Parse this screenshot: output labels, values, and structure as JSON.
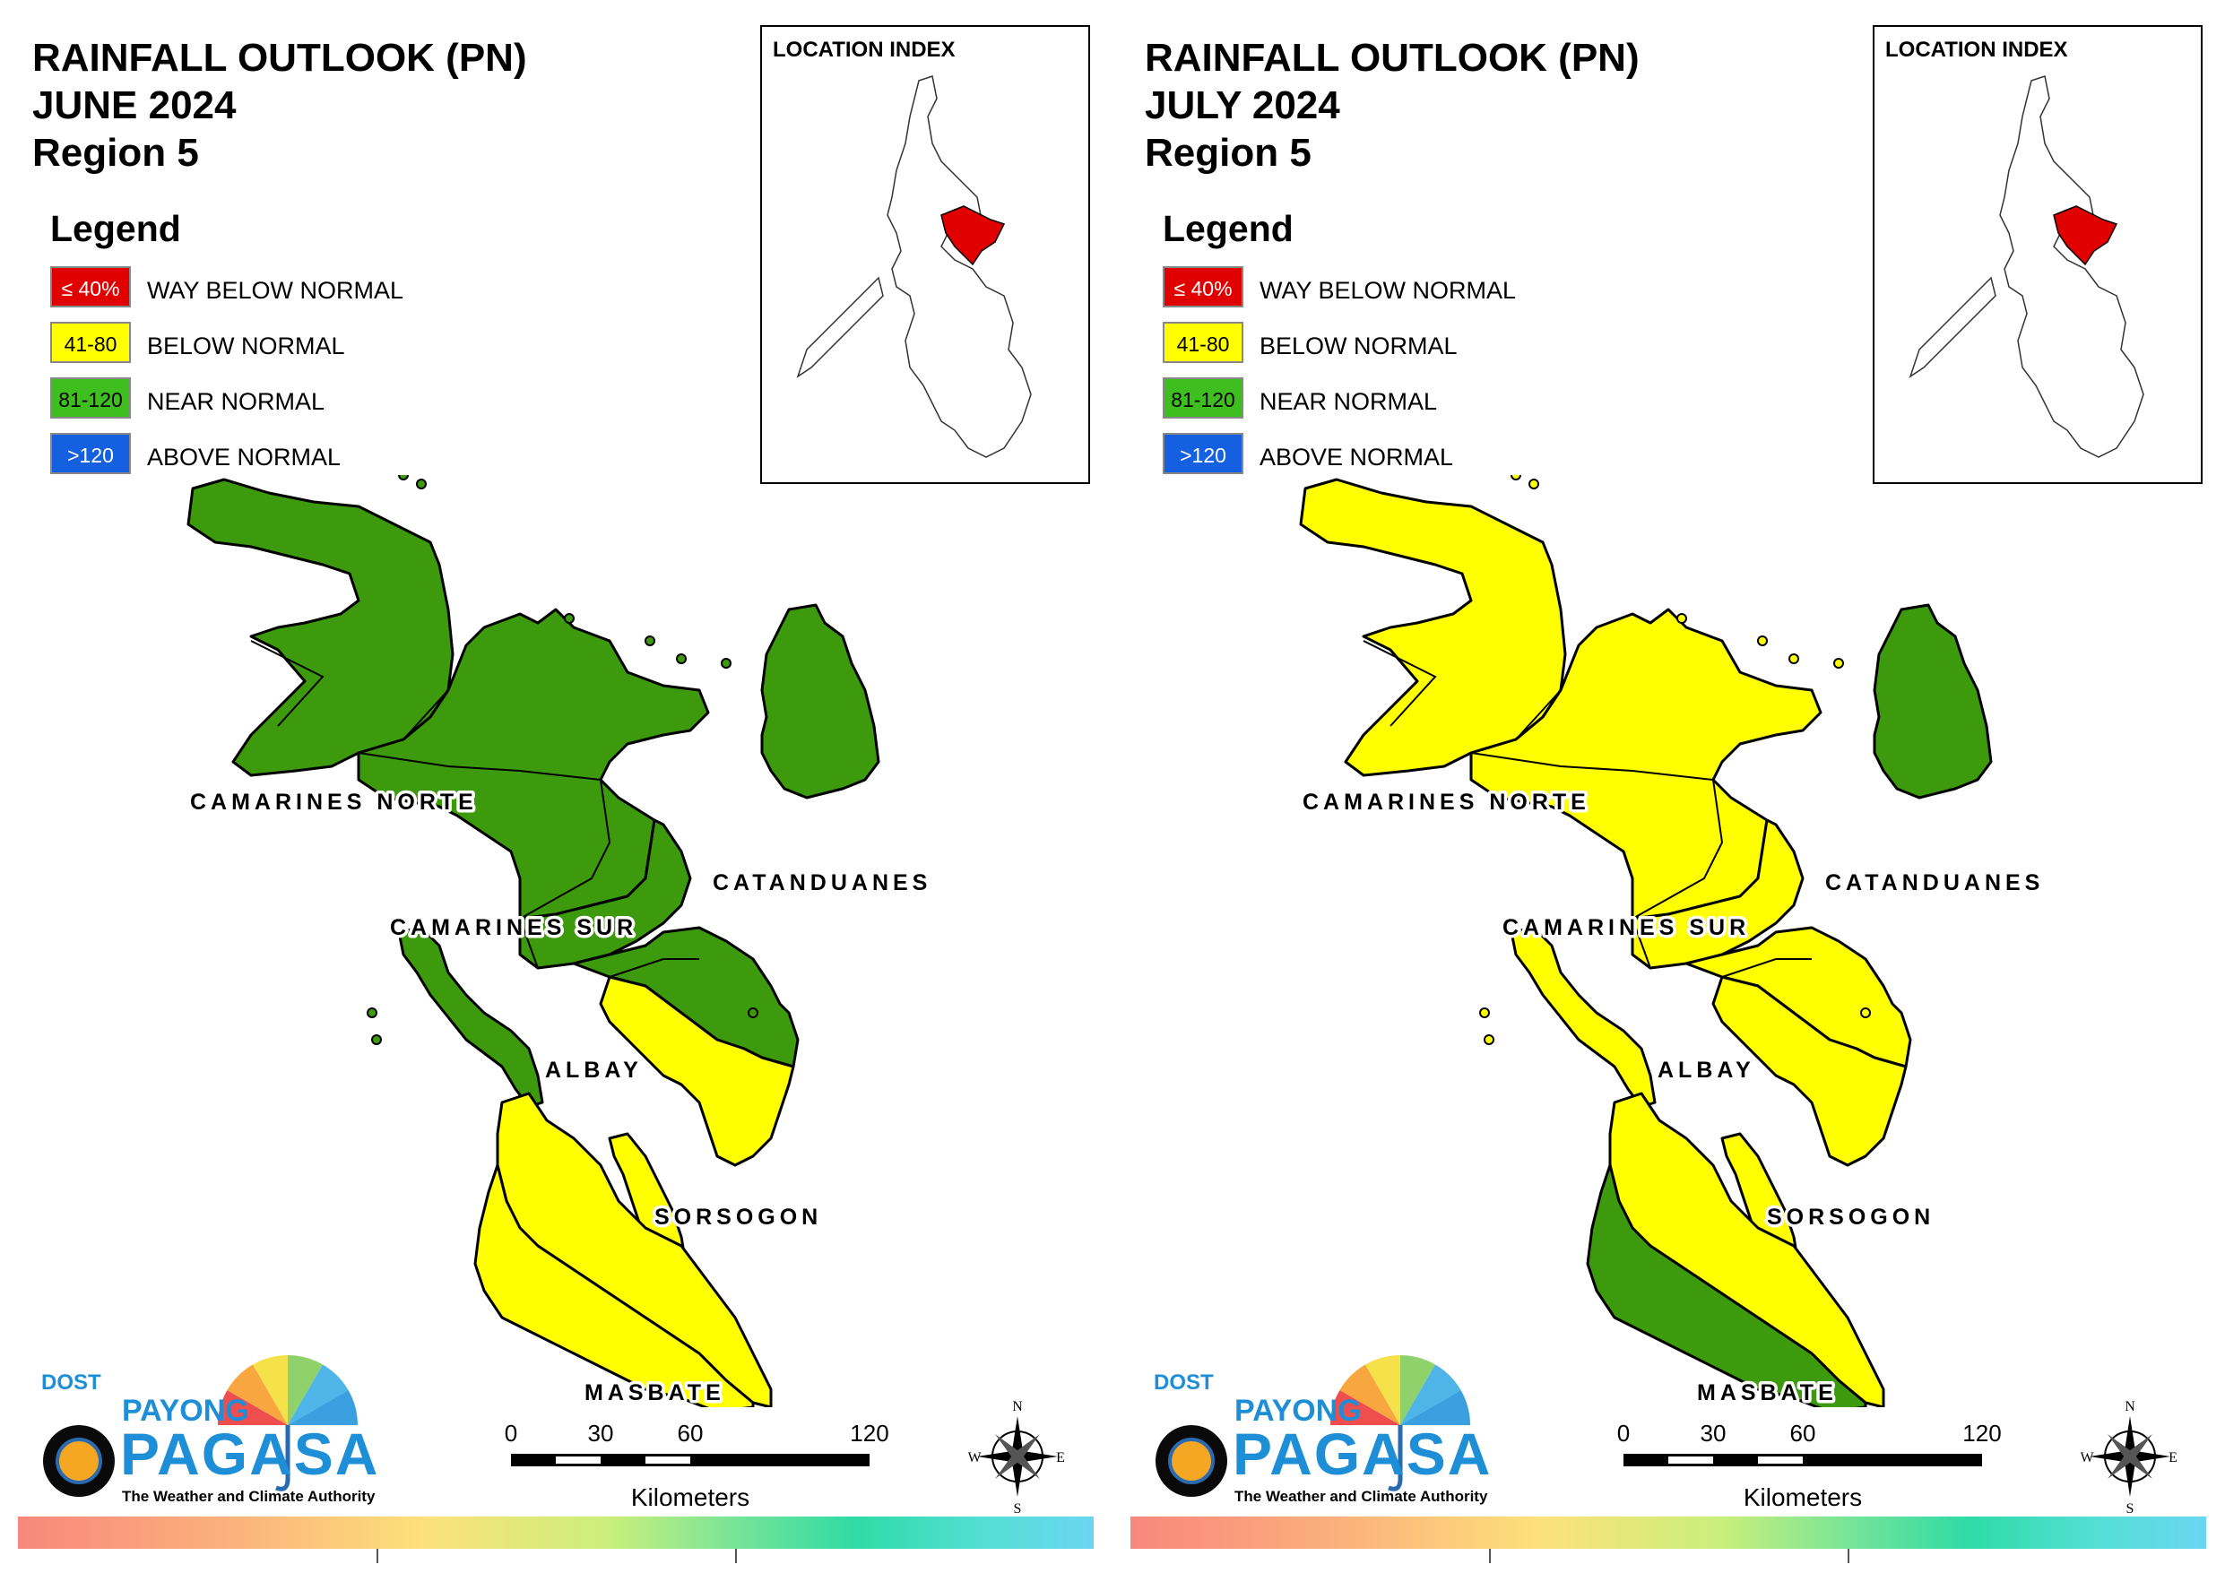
{
  "panels": [
    {
      "id": "june",
      "title": {
        "line1": "RAINFALL OUTLOOK (PN)",
        "line2": "JUNE 2024",
        "line3": "Region 5"
      },
      "colors": {
        "cam_norte": "#3d9a0c",
        "cam_sur": "#3d9a0c",
        "catanduanes": "#3d9a0c",
        "albay": "#3d9a0c",
        "sorsogon_n": "#3d9a0c",
        "sorsogon_s": "#ffff00",
        "burias": "#3d9a0c",
        "ticao": "#ffff00",
        "masbate": "#ffff00",
        "masbate_west": "#ffff00"
      }
    },
    {
      "id": "july",
      "title": {
        "line1": "RAINFALL OUTLOOK (PN)",
        "line2": "JULY 2024",
        "line3": "Region 5"
      },
      "colors": {
        "cam_norte": "#ffff00",
        "cam_sur": "#ffff00",
        "catanduanes": "#3d9a0c",
        "albay": "#ffff00",
        "sorsogon_n": "#ffff00",
        "sorsogon_s": "#ffff00",
        "burias": "#ffff00",
        "ticao": "#ffff00",
        "masbate": "#ffff00",
        "masbate_west": "#3d9a0c"
      }
    }
  ],
  "legend": {
    "heading": "Legend",
    "items": [
      {
        "range": "≤ 40%",
        "label": "WAY BELOW NORMAL",
        "color": "#e00000",
        "text_color": "#ffffff"
      },
      {
        "range": "41-80",
        "label": "BELOW NORMAL",
        "color": "#ffff00",
        "text_color": "#000000"
      },
      {
        "range": "81-120",
        "label": "NEAR NORMAL",
        "color": "#3fbf1f",
        "text_color": "#000000"
      },
      {
        "range": ">120",
        "label": "ABOVE NORMAL",
        "color": "#1560e0",
        "text_color": "#ffffff"
      }
    ]
  },
  "location_index": {
    "title": "LOCATION INDEX",
    "highlight_color": "#e00000"
  },
  "provinces": {
    "camarines_norte": "CAMARINES NORTE",
    "camarines_sur": "CAMARINES SUR",
    "catanduanes": "CATANDUANES",
    "albay": "ALBAY",
    "sorsogon": "SORSOGON",
    "masbate": "MASBATE"
  },
  "scale_bar": {
    "ticks": [
      "0",
      "30",
      "60",
      "120"
    ],
    "unit": "Kilometers"
  },
  "compass": {
    "n": "N",
    "s": "S",
    "e": "E",
    "w": "W"
  },
  "logo": {
    "dost": "DOST",
    "payong": "PAYONG",
    "pagasa": "PAGASA",
    "tagline": "The Weather and Climate Authority"
  }
}
